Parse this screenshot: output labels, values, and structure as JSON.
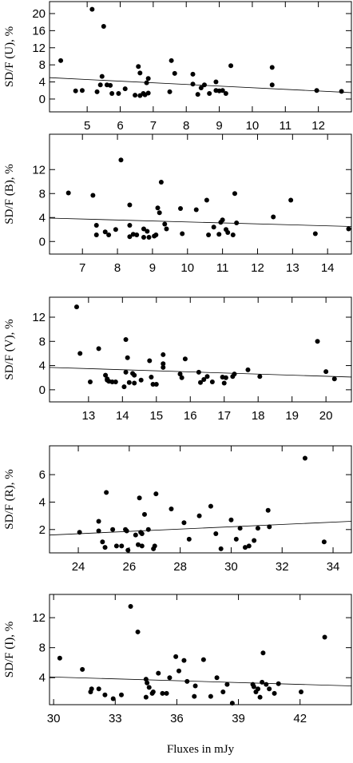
{
  "chart_data": [
    {
      "type": "scatter",
      "y_label": "SD/F (U), %",
      "x": [
        4.2,
        4.65,
        4.85,
        5.15,
        5.3,
        5.4,
        5.45,
        5.5,
        5.6,
        5.7,
        5.75,
        5.95,
        6.15,
        6.45,
        6.55,
        6.6,
        6.6,
        6.7,
        6.75,
        6.8,
        6.85,
        6.85,
        7.5,
        7.55,
        7.65,
        8.2,
        8.2,
        8.35,
        8.45,
        8.55,
        8.7,
        8.9,
        8.9,
        9.0,
        9.1,
        9.2,
        9.35,
        10.6,
        10.6,
        11.95,
        12.7
      ],
      "y": [
        9,
        1.9,
        2,
        21,
        1.7,
        3.3,
        5.3,
        17,
        3.3,
        3.2,
        1.3,
        1.3,
        2.4,
        0.9,
        7.6,
        6.1,
        0.8,
        1.3,
        1,
        3.8,
        4.8,
        1.4,
        1.7,
        9,
        6,
        5.8,
        3.5,
        1.1,
        2.6,
        3.3,
        1.3,
        2,
        4,
        1.9,
        2,
        1.3,
        7.8,
        7.4,
        3.3,
        2,
        1.8
      ],
      "fit": {
        "x": [
          3.86,
          13
        ],
        "y": [
          5,
          1.5
        ]
      },
      "xlim": [
        3.86,
        13
      ],
      "ylim": [
        -3,
        22.8
      ],
      "xticks": [
        5,
        6,
        7,
        8,
        9,
        10,
        11,
        12
      ],
      "yticks": [
        0,
        4,
        8,
        12,
        16,
        20
      ]
    },
    {
      "type": "scatter",
      "y_label": "SD/F (B), %",
      "x": [
        6.6,
        7.3,
        7.4,
        7.4,
        7.65,
        7.75,
        7.95,
        8.1,
        8.35,
        8.35,
        8.35,
        8.45,
        8.55,
        8.75,
        8.75,
        8.85,
        8.9,
        9.05,
        9.1,
        9.15,
        9.2,
        9.25,
        9.35,
        9.4,
        9.8,
        9.85,
        10.25,
        10.55,
        10.6,
        10.75,
        10.9,
        10.95,
        11.0,
        11.1,
        11.15,
        11.3,
        11.35,
        11.4,
        12.45,
        12.95,
        13.65,
        14.6
      ],
      "y": [
        8.1,
        7.7,
        2.7,
        1.1,
        1.6,
        1.1,
        2,
        13.6,
        2.7,
        6.1,
        0.8,
        1.2,
        1.1,
        2.1,
        0.7,
        1.7,
        0.7,
        0.9,
        1.1,
        5.6,
        4.8,
        9.9,
        2.9,
        2.1,
        5.5,
        1.3,
        5.3,
        6.9,
        1.1,
        2.4,
        1.2,
        3.2,
        3.6,
        2,
        1.5,
        1.1,
        8,
        3.1,
        4.1,
        6.9,
        1.3,
        2.1
      ],
      "fit": {
        "x": [
          6.06,
          14.68
        ],
        "y": [
          3.9,
          2.5
        ]
      },
      "xlim": [
        6.06,
        14.68
      ],
      "ylim": [
        -2.1,
        17.9
      ],
      "xticks": [
        7,
        8,
        9,
        10,
        11,
        12,
        13,
        14
      ],
      "yticks": [
        0,
        4,
        8,
        12
      ]
    },
    {
      "type": "scatter",
      "y_label": "SD/F (V), %",
      "x": [
        12.65,
        12.75,
        13.05,
        13.3,
        13.5,
        13.55,
        13.55,
        13.6,
        13.7,
        13.8,
        14.05,
        14.1,
        14.1,
        14.15,
        14.2,
        14.3,
        14.35,
        14.35,
        14.55,
        14.8,
        14.85,
        14.9,
        15.0,
        15.2,
        15.2,
        15.2,
        15.7,
        15.75,
        15.85,
        16.25,
        16.3,
        16.4,
        16.5,
        16.65,
        16.95,
        17.0,
        17.05,
        17.25,
        17.3,
        17.7,
        18.05,
        19.75,
        20.0,
        20.25
      ],
      "y": [
        13.7,
        6,
        1.3,
        6.8,
        2.4,
        1.8,
        1.6,
        1.4,
        1.3,
        1.3,
        0.5,
        8.3,
        2.9,
        5.3,
        1.2,
        2.7,
        2.4,
        1.1,
        1.6,
        4.8,
        2.1,
        0.9,
        0.9,
        5.8,
        4.3,
        3.7,
        2.6,
        2,
        5.1,
        2.9,
        1.2,
        1.7,
        2.2,
        1.3,
        2.1,
        1.1,
        2,
        2.2,
        2.6,
        3.3,
        2.2,
        8,
        3,
        1.8
      ],
      "fit": {
        "x": [
          11.85,
          20.75
        ],
        "y": [
          3.7,
          2.1
        ]
      },
      "xlim": [
        11.85,
        20.75
      ],
      "ylim": [
        -2,
        15.3
      ],
      "xticks": [
        13,
        14,
        15,
        16,
        17,
        18,
        19,
        20
      ],
      "yticks": [
        0,
        4,
        8,
        12
      ]
    },
    {
      "type": "scatter",
      "y_label": "SD/F (R), %",
      "x": [
        24.05,
        24.8,
        24.8,
        24.95,
        25.05,
        25.1,
        25.35,
        25.5,
        25.7,
        25.85,
        25.9,
        25.95,
        26.25,
        26.35,
        26.4,
        26.45,
        26.5,
        26.5,
        26.6,
        26.75,
        26.95,
        27.0,
        27.05,
        27.65,
        28.15,
        28.35,
        28.75,
        29.2,
        29.4,
        29.6,
        30.0,
        30.2,
        30.35,
        30.55,
        30.7,
        30.9,
        31.05,
        31.45,
        31.5,
        32.9,
        33.65
      ],
      "y": [
        1.8,
        2.6,
        1.9,
        1.1,
        0.7,
        4.7,
        2,
        0.8,
        0.8,
        2,
        1.9,
        0.5,
        1.6,
        0.9,
        4.3,
        1.8,
        1.7,
        0.8,
        3.1,
        2,
        0.6,
        0.8,
        4.6,
        3.5,
        2.5,
        1.3,
        3,
        3.7,
        1.7,
        0.6,
        2.7,
        1.3,
        2.1,
        0.7,
        0.8,
        1.2,
        2.1,
        3.4,
        2.2,
        7.2,
        1.1
      ],
      "fit": {
        "x": [
          22.87,
          34.72
        ],
        "y": [
          1.6,
          2.6
        ]
      },
      "xlim": [
        22.87,
        34.72
      ],
      "ylim": [
        0.3,
        8.1
      ],
      "xticks": [
        24,
        26,
        28,
        30,
        32,
        34
      ],
      "yticks": [
        2,
        4,
        6
      ]
    },
    {
      "type": "scatter",
      "y_label": "SD/F (I), %",
      "x_label": "Fluxes in mJy",
      "x": [
        30.3,
        31.4,
        31.8,
        31.85,
        32.2,
        32.5,
        32.9,
        33.3,
        33.75,
        34.1,
        34.5,
        34.55,
        34.65,
        34.8,
        34.5,
        34.85,
        35.1,
        35.3,
        35.5,
        35.65,
        35.95,
        36.1,
        36.35,
        36.5,
        36.85,
        36.9,
        37.3,
        37.65,
        37.95,
        38.25,
        38.45,
        38.7,
        39.7,
        39.75,
        39.85,
        39.95,
        40.05,
        40.15,
        40.2,
        40.35,
        40.5,
        40.75,
        40.95,
        42.05,
        43.2
      ],
      "y": [
        6.6,
        5.1,
        2.1,
        2.5,
        2.5,
        1.7,
        1.2,
        1.7,
        13.5,
        10.1,
        3.8,
        3.3,
        2.7,
        1.9,
        1.4,
        2.1,
        4.6,
        1.9,
        1.9,
        4,
        6.8,
        4.9,
        6.3,
        3.5,
        1.5,
        2.9,
        6.4,
        1.5,
        4,
        2.1,
        3.1,
        0.6,
        3.1,
        2.8,
        2.1,
        2.5,
        1.4,
        3.4,
        7.3,
        3.1,
        2.5,
        1.9,
        3.2,
        2.1,
        9.4
      ],
      "fit": {
        "x": [
          29.8,
          44.5
        ],
        "y": [
          4.1,
          2.9
        ]
      },
      "xlim": [
        29.8,
        44.5
      ],
      "ylim": [
        0.4,
        15.1
      ],
      "xticks": [
        30,
        33,
        36,
        39,
        42
      ],
      "yticks": [
        4,
        8,
        12
      ]
    }
  ]
}
